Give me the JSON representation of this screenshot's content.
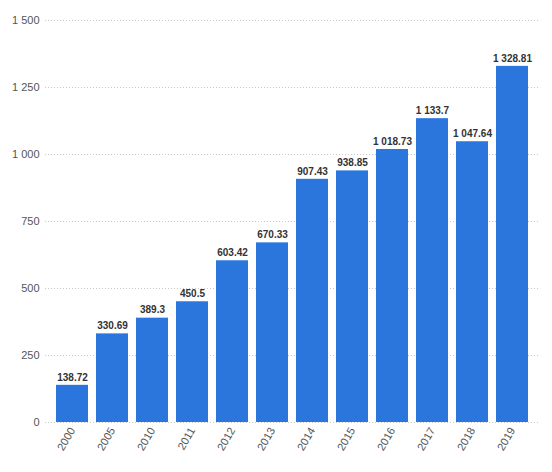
{
  "chart_data": {
    "type": "bar",
    "categories": [
      "2000",
      "2005",
      "2010",
      "2011",
      "2012",
      "2013",
      "2014",
      "2015",
      "2016",
      "2017",
      "2018",
      "2019"
    ],
    "values": [
      138.72,
      330.69,
      389.3,
      450.5,
      603.42,
      670.33,
      907.43,
      938.85,
      1018.73,
      1133.7,
      1047.64,
      1328.81
    ],
    "value_labels": [
      "138.72",
      "330.69",
      "389.3",
      "450.5",
      "603.42",
      "670.33",
      "907.43",
      "938.85",
      "1 018.73",
      "1 133.7",
      "1 047.64",
      "1 328.81"
    ],
    "color": "#2a76dc",
    "ylim": [
      0,
      1500
    ],
    "yticks": [
      0,
      250,
      500,
      750,
      {
        "value": 1000,
        "label": "1 000"
      },
      {
        "value": 1250,
        "label": "1 250"
      },
      {
        "value": 1500,
        "label": "1 500"
      }
    ],
    "grid": true,
    "data_labels": true
  }
}
